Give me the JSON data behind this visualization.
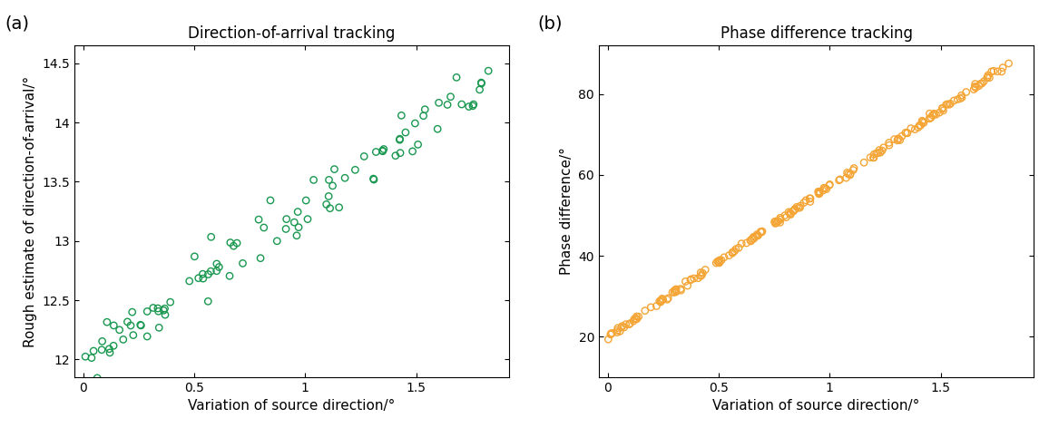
{
  "title_a": "Direction-of-arrival tracking",
  "title_b": "Phase difference tracking",
  "xlabel": "Variation of source direction/°",
  "ylabel_a": "Rough estimate of direction-of-arrival/°",
  "ylabel_b": "Phase difference/°",
  "label_a": "(a)",
  "label_b": "(b)",
  "color_a": "#1a9850",
  "color_b": "#f4a535",
  "xlim_a": [
    -0.04,
    1.92
  ],
  "xlim_b": [
    -0.04,
    1.92
  ],
  "ylim_a": [
    11.85,
    14.65
  ],
  "ylim_b": [
    10,
    92
  ],
  "xticks_a": [
    0.0,
    0.5,
    1.0,
    1.5
  ],
  "xticks_b": [
    0.0,
    0.5,
    1.0,
    1.5
  ],
  "yticks_a": [
    12.0,
    12.5,
    13.0,
    13.5,
    14.0,
    14.5
  ],
  "yticks_b": [
    20,
    40,
    60,
    80
  ],
  "seed_a": 42,
  "seed_b": 7,
  "n_points_a": 100,
  "n_points_b": 200,
  "marker_size": 28,
  "line_width": 1.0,
  "title_fontsize": 12,
  "label_fontsize": 11,
  "tick_fontsize": 10,
  "ab_fontsize": 14
}
